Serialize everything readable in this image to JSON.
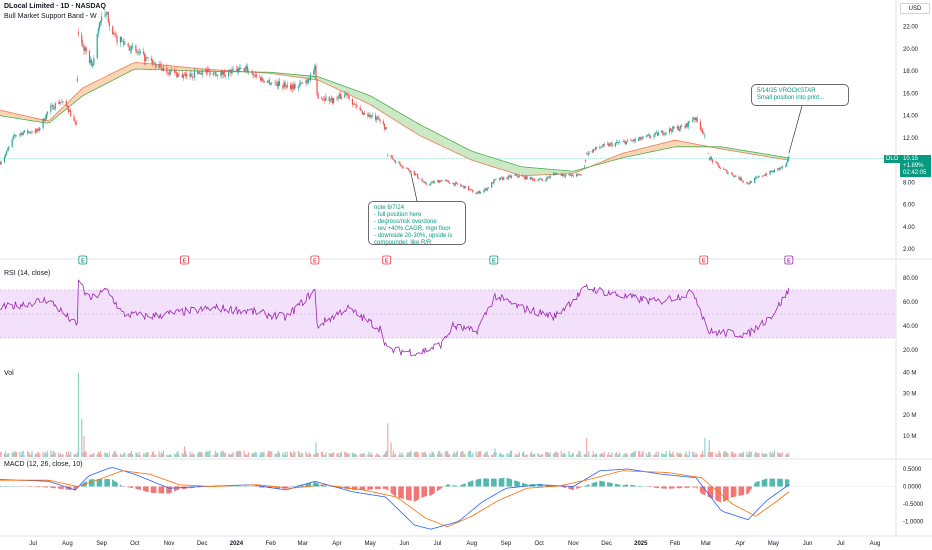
{
  "header": {
    "title": "DLocal Limited · 1D · NASDAQ",
    "subtitle": "Bull Market Support Band - W",
    "currency": "USD"
  },
  "price_tag": {
    "symbol": "DLO",
    "lines": [
      "10.15",
      "+1.89%",
      "02:42:05"
    ]
  },
  "colors": {
    "up": "#26a69a",
    "down": "#ef5350",
    "band_fill": "#f7c79b",
    "band_fill_green": "#b9e0b0",
    "rsi_line": "#9c27b0",
    "rsi_band": "#f3e1fb",
    "macd_line": "#2962ff",
    "signal_line": "#ff6d00",
    "note_text": "#089981"
  },
  "notes": [
    {
      "id": "note-1",
      "lines": [
        "note 6/7/24",
        "- full position here",
        "- degross/risk overdone",
        "- rev +40% CAGR, mgn floor",
        "- downside 20-30%, upside is",
        "compounder. like R/R"
      ]
    },
    {
      "id": "note-2",
      "lines": [
        "5/14/25 VROCKSTAR",
        "Small position into print..."
      ]
    }
  ],
  "panes": {
    "rsi": {
      "label": "RSI (14, close)",
      "ticks": [
        "80.00",
        "60.00",
        "40.00",
        "20.00"
      ]
    },
    "vol": {
      "label": "Vol",
      "ticks": [
        "40 M",
        "30 M",
        "20 M",
        "10 M"
      ]
    },
    "macd": {
      "label": "MACD (12, 26, close, 10)",
      "ticks": [
        "0.5000",
        "0.0000",
        "-0.5000",
        "-1.0000"
      ]
    }
  },
  "event_markers": [
    {
      "date": "2023-08-15",
      "letter": "E",
      "kind": "earnings"
    },
    {
      "date": "2023-11-15",
      "letter": "E",
      "kind": "earnings"
    },
    {
      "date": "2024-03-12",
      "letter": "E",
      "kind": "earnings"
    },
    {
      "date": "2024-05-16",
      "letter": "E",
      "kind": "earnings"
    },
    {
      "date": "2024-08-21",
      "letter": "E",
      "kind": "earnings"
    },
    {
      "date": "2025-02-27",
      "letter": "E",
      "kind": "earnings"
    },
    {
      "date": "2025-05-15",
      "letter": "E",
      "kind": "earnings"
    }
  ],
  "chart_data": {
    "type": "candlestick",
    "title": "DLocal Limited · 1D · NASDAQ",
    "indicator": "Bull Market Support Band - W",
    "x_axis": {
      "ticks": [
        "Jul",
        "Aug",
        "Sep",
        "Oct",
        "Nov",
        "Dec",
        "2024",
        "Feb",
        "Mar",
        "Apr",
        "May",
        "Jun",
        "Jul",
        "Aug",
        "Sep",
        "Oct",
        "Nov",
        "Dec",
        "2025",
        "Feb",
        "Mar",
        "Apr",
        "May",
        "Jun",
        "Jul",
        "Aug"
      ],
      "tick_dates": [
        "2023-07-01",
        "2023-08-01",
        "2023-09-01",
        "2023-10-01",
        "2023-11-01",
        "2023-12-01",
        "2024-01-01",
        "2024-02-01",
        "2024-03-01",
        "2024-04-01",
        "2024-05-01",
        "2024-06-01",
        "2024-07-01",
        "2024-08-01",
        "2024-09-01",
        "2024-10-01",
        "2024-11-01",
        "2024-12-01",
        "2025-01-01",
        "2025-02-01",
        "2025-03-01",
        "2025-04-01",
        "2025-05-01",
        "2025-06-01",
        "2025-07-01",
        "2025-08-01"
      ],
      "range": [
        "2023-06-01",
        "2025-08-20"
      ]
    },
    "price_axis": {
      "ticks": [
        22,
        20,
        18,
        16,
        14,
        12,
        10,
        8,
        6,
        4,
        2
      ],
      "tick_labels": [
        "22.00",
        "20.00",
        "18.00",
        "16.00",
        "14.00",
        "12.00",
        "10.00",
        "8.00",
        "6.00",
        "4.00",
        "2.00"
      ],
      "range": [
        1.2,
        24.4
      ]
    },
    "last_price": 10.15,
    "change_pct": "+1.89%",
    "price_keypoints": [
      [
        "2023-06-01",
        9.8
      ],
      [
        "2023-06-06",
        10.5
      ],
      [
        "2023-06-14",
        12.2
      ],
      [
        "2023-06-22",
        12.5
      ],
      [
        "2023-07-05",
        12.6
      ],
      [
        "2023-07-15",
        14.5
      ],
      [
        "2023-07-25",
        15.3
      ],
      [
        "2023-08-01",
        14.8
      ],
      [
        "2023-08-09",
        13.0
      ],
      [
        "2023-08-11",
        21.5
      ],
      [
        "2023-08-18",
        19.5
      ],
      [
        "2023-08-24",
        18.5
      ],
      [
        "2023-08-30",
        22.5
      ],
      [
        "2023-09-06",
        23.0
      ],
      [
        "2023-09-13",
        21.0
      ],
      [
        "2023-09-22",
        20.5
      ],
      [
        "2023-10-05",
        19.5
      ],
      [
        "2023-10-20",
        18.5
      ],
      [
        "2023-11-01",
        18.0
      ],
      [
        "2023-11-15",
        17.5
      ],
      [
        "2023-12-01",
        18.0
      ],
      [
        "2023-12-20",
        17.8
      ],
      [
        "2024-01-10",
        18.2
      ],
      [
        "2024-01-25",
        17.2
      ],
      [
        "2024-02-10",
        16.8
      ],
      [
        "2024-02-25",
        16.6
      ],
      [
        "2024-03-05",
        17.2
      ],
      [
        "2024-03-12",
        18.2
      ],
      [
        "2024-03-14",
        15.8
      ],
      [
        "2024-03-28",
        15.4
      ],
      [
        "2024-04-10",
        16.0
      ],
      [
        "2024-04-20",
        14.5
      ],
      [
        "2024-05-10",
        13.5
      ],
      [
        "2024-05-16",
        12.8
      ],
      [
        "2024-05-17",
        10.4
      ],
      [
        "2024-05-30",
        9.5
      ],
      [
        "2024-06-10",
        8.8
      ],
      [
        "2024-06-20",
        7.8
      ],
      [
        "2024-07-05",
        8.2
      ],
      [
        "2024-07-25",
        7.6
      ],
      [
        "2024-08-05",
        7.0
      ],
      [
        "2024-08-14",
        7.4
      ],
      [
        "2024-08-22",
        8.2
      ],
      [
        "2024-09-10",
        8.6
      ],
      [
        "2024-09-25",
        8.3
      ],
      [
        "2024-10-05",
        8.2
      ],
      [
        "2024-10-15",
        8.8
      ],
      [
        "2024-10-30",
        8.6
      ],
      [
        "2024-11-10",
        8.7
      ],
      [
        "2024-11-13",
        10.6
      ],
      [
        "2024-11-25",
        11.2
      ],
      [
        "2024-12-10",
        11.5
      ],
      [
        "2024-12-28",
        11.8
      ],
      [
        "2025-01-15",
        12.3
      ],
      [
        "2025-01-30",
        12.8
      ],
      [
        "2025-02-10",
        13.0
      ],
      [
        "2025-02-18",
        13.9
      ],
      [
        "2025-02-27",
        12.5
      ],
      [
        "2025-03-04",
        10.2
      ],
      [
        "2025-03-15",
        9.2
      ],
      [
        "2025-03-25",
        8.7
      ],
      [
        "2025-04-08",
        7.9
      ],
      [
        "2025-04-20",
        8.6
      ],
      [
        "2025-05-01",
        9.0
      ],
      [
        "2025-05-12",
        9.5
      ],
      [
        "2025-05-15",
        10.15
      ]
    ],
    "gaps": [
      [
        "2023-08-09",
        "2023-08-11"
      ],
      [
        "2024-05-16",
        "2024-05-17"
      ],
      [
        "2024-11-10",
        "2024-11-13"
      ],
      [
        "2025-02-27",
        "2025-03-04"
      ]
    ],
    "support_band": {
      "sma_20w": [
        [
          "2023-06-01",
          14.5
        ],
        [
          "2023-07-15",
          13.5
        ],
        [
          "2023-08-15",
          16.5
        ],
        [
          "2023-10-01",
          18.8
        ],
        [
          "2023-12-01",
          18.2
        ],
        [
          "2024-02-01",
          17.8
        ],
        [
          "2024-03-15",
          17.2
        ],
        [
          "2024-05-01",
          15.0
        ],
        [
          "2024-06-15",
          12.2
        ],
        [
          "2024-08-01",
          10.0
        ],
        [
          "2024-09-15",
          8.6
        ],
        [
          "2024-11-01",
          8.8
        ],
        [
          "2024-12-15",
          10.6
        ],
        [
          "2025-02-01",
          11.8
        ],
        [
          "2025-03-15",
          11.0
        ],
        [
          "2025-05-15",
          10.0
        ]
      ],
      "ema_21w": [
        [
          "2023-06-01",
          14.0
        ],
        [
          "2023-07-15",
          13.3
        ],
        [
          "2023-08-15",
          15.8
        ],
        [
          "2023-10-01",
          18.2
        ],
        [
          "2023-12-01",
          18.0
        ],
        [
          "2024-02-01",
          17.9
        ],
        [
          "2024-03-15",
          17.5
        ],
        [
          "2024-05-01",
          15.8
        ],
        [
          "2024-06-15",
          13.2
        ],
        [
          "2024-08-01",
          10.8
        ],
        [
          "2024-09-15",
          9.4
        ],
        [
          "2024-11-01",
          9.0
        ],
        [
          "2024-12-15",
          10.2
        ],
        [
          "2025-02-01",
          11.2
        ],
        [
          "2025-03-15",
          11.2
        ],
        [
          "2025-05-15",
          10.2
        ]
      ]
    },
    "rsi": {
      "range": [
        10,
        90
      ],
      "band": [
        30,
        70
      ],
      "keypoints": [
        [
          "2023-06-01",
          55
        ],
        [
          "2023-07-15",
          62
        ],
        [
          "2023-08-10",
          40
        ],
        [
          "2023-08-11",
          80
        ],
        [
          "2023-08-20",
          62
        ],
        [
          "2023-09-06",
          70
        ],
        [
          "2023-09-20",
          50
        ],
        [
          "2023-10-15",
          48
        ],
        [
          "2023-11-15",
          52
        ],
        [
          "2023-12-15",
          55
        ],
        [
          "2024-01-15",
          52
        ],
        [
          "2024-02-15",
          47
        ],
        [
          "2024-03-12",
          70
        ],
        [
          "2024-03-14",
          40
        ],
        [
          "2024-04-10",
          55
        ],
        [
          "2024-05-10",
          38
        ],
        [
          "2024-05-17",
          20
        ],
        [
          "2024-06-15",
          18
        ],
        [
          "2024-07-05",
          25
        ],
        [
          "2024-07-15",
          40
        ],
        [
          "2024-08-05",
          35
        ],
        [
          "2024-08-22",
          65
        ],
        [
          "2024-09-15",
          55
        ],
        [
          "2024-10-15",
          48
        ],
        [
          "2024-11-13",
          72
        ],
        [
          "2024-12-15",
          65
        ],
        [
          "2025-01-15",
          60
        ],
        [
          "2025-02-18",
          68
        ],
        [
          "2025-03-04",
          35
        ],
        [
          "2025-04-08",
          33
        ],
        [
          "2025-05-01",
          50
        ],
        [
          "2025-05-15",
          70
        ]
      ]
    },
    "volume": {
      "range_millions": [
        0,
        40
      ],
      "typical_millions": 1.8,
      "spikes": [
        [
          "2023-08-11",
          40
        ],
        [
          "2023-08-14",
          18
        ],
        [
          "2023-08-16",
          10
        ],
        [
          "2023-11-15",
          5
        ],
        [
          "2024-03-13",
          7
        ],
        [
          "2024-05-17",
          16
        ],
        [
          "2024-05-20",
          7
        ],
        [
          "2024-08-22",
          4
        ],
        [
          "2024-11-13",
          9
        ],
        [
          "2025-02-28",
          9
        ],
        [
          "2025-03-04",
          8
        ],
        [
          "2025-05-15",
          2
        ]
      ]
    },
    "macd": {
      "range": [
        -1.3,
        0.7
      ],
      "macd_keypoints": [
        [
          "2023-06-01",
          0.2
        ],
        [
          "2023-07-15",
          0.15
        ],
        [
          "2023-08-08",
          -0.1
        ],
        [
          "2023-08-20",
          0.3
        ],
        [
          "2023-09-10",
          0.55
        ],
        [
          "2023-10-01",
          0.35
        ],
        [
          "2023-11-01",
          -0.05
        ],
        [
          "2023-12-01",
          0.0
        ],
        [
          "2024-01-15",
          0.05
        ],
        [
          "2024-02-15",
          -0.1
        ],
        [
          "2024-03-12",
          0.15
        ],
        [
          "2024-04-15",
          -0.15
        ],
        [
          "2024-05-15",
          -0.3
        ],
        [
          "2024-06-10",
          -1.1
        ],
        [
          "2024-06-25",
          -1.22
        ],
        [
          "2024-07-20",
          -1.0
        ],
        [
          "2024-08-10",
          -0.45
        ],
        [
          "2024-09-01",
          -0.05
        ],
        [
          "2024-10-01",
          0.05
        ],
        [
          "2024-11-01",
          0.0
        ],
        [
          "2024-11-25",
          0.45
        ],
        [
          "2024-12-20",
          0.5
        ],
        [
          "2025-01-20",
          0.35
        ],
        [
          "2025-02-20",
          0.25
        ],
        [
          "2025-03-15",
          -0.7
        ],
        [
          "2025-04-08",
          -0.95
        ],
        [
          "2025-04-25",
          -0.4
        ],
        [
          "2025-05-15",
          0.05
        ]
      ],
      "signal_keypoints": [
        [
          "2023-06-01",
          0.18
        ],
        [
          "2023-07-15",
          0.18
        ],
        [
          "2023-08-10",
          0.0
        ],
        [
          "2023-08-25",
          0.15
        ],
        [
          "2023-09-20",
          0.45
        ],
        [
          "2023-10-15",
          0.35
        ],
        [
          "2023-11-10",
          0.05
        ],
        [
          "2023-12-10",
          0.0
        ],
        [
          "2024-01-20",
          0.05
        ],
        [
          "2024-02-20",
          -0.05
        ],
        [
          "2024-03-20",
          0.05
        ],
        [
          "2024-04-25",
          -0.1
        ],
        [
          "2024-05-25",
          -0.3
        ],
        [
          "2024-06-20",
          -0.9
        ],
        [
          "2024-07-10",
          -1.15
        ],
        [
          "2024-08-01",
          -0.85
        ],
        [
          "2024-08-25",
          -0.4
        ],
        [
          "2024-09-20",
          -0.05
        ],
        [
          "2024-10-20",
          0.02
        ],
        [
          "2024-11-15",
          0.2
        ],
        [
          "2024-12-15",
          0.45
        ],
        [
          "2025-01-25",
          0.4
        ],
        [
          "2025-02-25",
          0.25
        ],
        [
          "2025-03-25",
          -0.5
        ],
        [
          "2025-04-15",
          -0.85
        ],
        [
          "2025-05-05",
          -0.4
        ],
        [
          "2025-05-15",
          -0.15
        ]
      ]
    }
  }
}
